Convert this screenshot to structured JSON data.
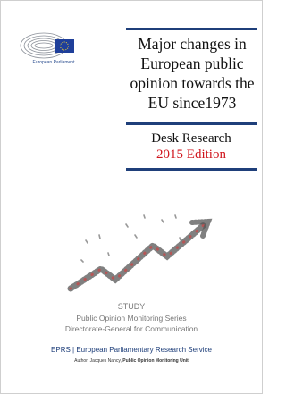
{
  "logo": {
    "label": "European Parliament"
  },
  "title": "Major changes in European public opinion towards the EU since1973",
  "subtitle": "Desk Research",
  "edition": "2015 Edition",
  "study": {
    "type": "STUDY",
    "series": "Public Opinion Monitoring Series",
    "directorate": "Directorate-General for Communication"
  },
  "footer": {
    "service": "EPRS | European Parliamentary Research Service",
    "author_prefix": "Author: Jacques Nancy, ",
    "author_unit": "Public Opinion Monitoring Unit"
  }
}
